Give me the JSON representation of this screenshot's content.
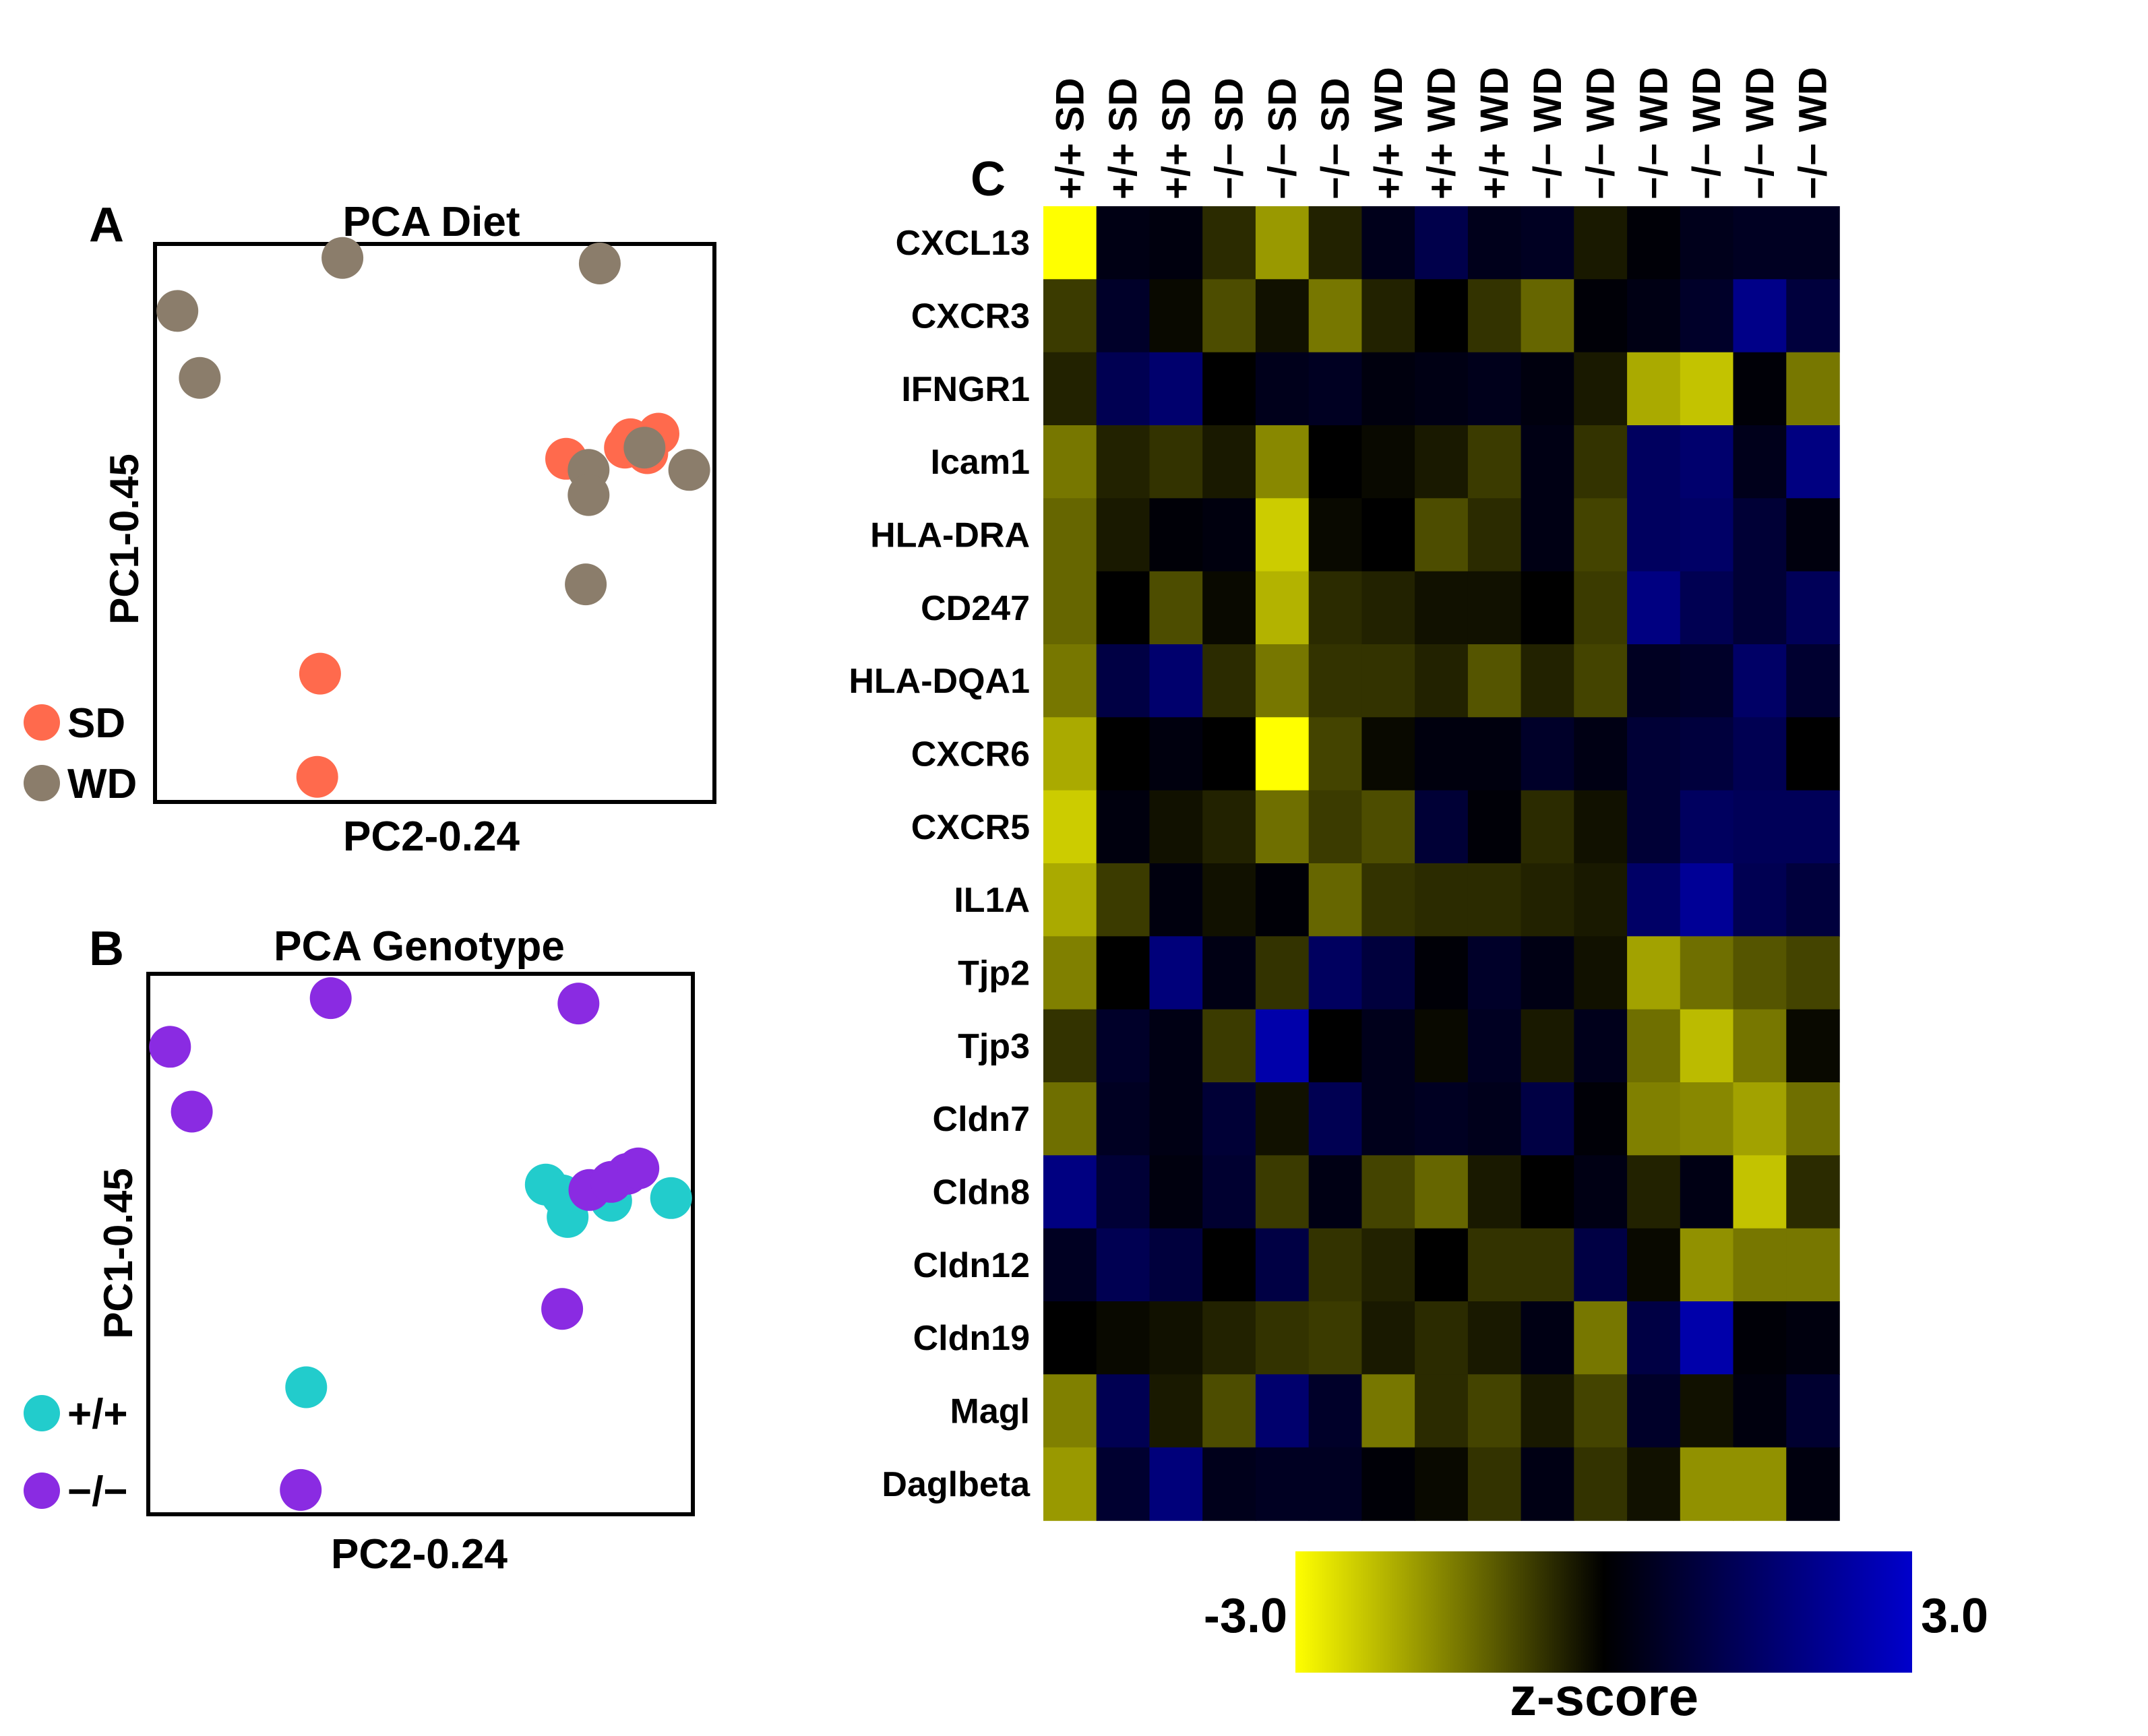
{
  "chart_data": [
    {
      "panel": "A",
      "type": "scatter",
      "title": "PCA Diet",
      "xlabel": "PC2-0.24",
      "ylabel": "PC1-0.45",
      "xlim": [
        0,
        100
      ],
      "ylim": [
        0,
        100
      ],
      "grid": false,
      "legend_position": "left",
      "series": [
        {
          "name": "SD",
          "color": "#ff6a4d",
          "points": [
            [
              29.5,
              23
            ],
            [
              29,
              4.5
            ],
            [
              73.5,
              61.5
            ],
            [
              85,
              65
            ],
            [
              90,
              66
            ],
            [
              84,
              63.5
            ],
            [
              88,
              62.5
            ]
          ]
        },
        {
          "name": "WD",
          "color": "#8b7d6b",
          "points": [
            [
              33.5,
              97.5
            ],
            [
              79.5,
              96.5
            ],
            [
              4,
              88
            ],
            [
              8,
              76
            ],
            [
              77.5,
              59.5
            ],
            [
              77.5,
              55
            ],
            [
              77,
              39
            ],
            [
              87.5,
              63.5
            ],
            [
              95.5,
              59.5
            ]
          ]
        }
      ]
    },
    {
      "panel": "B",
      "type": "scatter",
      "title": "PCA Genotype",
      "xlabel": "PC2-0.24",
      "ylabel": "PC1-0.45",
      "xlim": [
        0,
        100
      ],
      "ylim": [
        0,
        100
      ],
      "grid": false,
      "legend_position": "left",
      "series": [
        {
          "name": "+/+",
          "color": "#22cccc",
          "points": [
            [
              73,
              61
            ],
            [
              77,
              55
            ],
            [
              76,
              59
            ],
            [
              85,
              58
            ],
            [
              96,
              58.5
            ],
            [
              29,
              23.5
            ]
          ]
        },
        {
          "name": "−/−",
          "color": "#8a2be2",
          "points": [
            [
              33.5,
              95.5
            ],
            [
              79,
              94.5
            ],
            [
              4,
              86.5
            ],
            [
              8,
              74.5
            ],
            [
              81,
              60
            ],
            [
              85,
              61.5
            ],
            [
              88,
              63
            ],
            [
              90,
              64
            ],
            [
              76,
              38
            ],
            [
              28,
              4.5
            ]
          ]
        }
      ]
    },
    {
      "panel": "C",
      "type": "heatmap",
      "title": "",
      "columns": [
        "+/+ SD",
        "+/+ SD",
        "+/+ SD",
        "−/− SD",
        "−/− SD",
        "−/− SD",
        "+/+ WD",
        "+/+ WD",
        "+/+ WD",
        "−/− WD",
        "−/− WD",
        "−/− WD",
        "−/− WD",
        "−/− WD",
        "−/− WD"
      ],
      "rows": [
        "CXCL13",
        "CXCR3",
        "IFNGR1",
        "Icam1",
        "HLA-DRA",
        "CD247",
        "HLA-DQA1",
        "CXCR6",
        "CXCR5",
        "IL1A",
        "Tjp2",
        "Tjp3",
        "Cldn7",
        "Cldn8",
        "Cldn12",
        "Cldn19",
        "Magl",
        "Daglbeta"
      ],
      "values": [
        [
          -3.0,
          0.3,
          0.2,
          -0.5,
          -1.8,
          -0.4,
          0.4,
          1.1,
          0.4,
          0.5,
          -0.3,
          0.1,
          0.4,
          0.5,
          0.5
        ],
        [
          -0.7,
          0.6,
          -0.1,
          -0.9,
          -0.2,
          -1.4,
          -0.4,
          0.0,
          -0.6,
          -1.2,
          0.1,
          0.3,
          0.6,
          2.0,
          0.9
        ],
        [
          -0.4,
          1.2,
          1.6,
          0.0,
          0.4,
          0.5,
          0.2,
          0.3,
          0.4,
          0.2,
          -0.3,
          -2.0,
          -2.3,
          0.1,
          -1.4
        ],
        [
          -1.4,
          -0.4,
          -0.6,
          -0.3,
          -1.6,
          0.0,
          -0.1,
          -0.3,
          -0.7,
          0.3,
          -0.6,
          1.4,
          1.6,
          0.4,
          1.9
        ],
        [
          -1.2,
          -0.3,
          0.1,
          0.2,
          -2.4,
          -0.1,
          0.0,
          -0.9,
          -0.5,
          0.3,
          -0.8,
          1.4,
          1.5,
          0.8,
          0.2
        ],
        [
          -1.2,
          0.0,
          -0.9,
          -0.1,
          -2.1,
          -0.5,
          -0.4,
          -0.2,
          -0.2,
          0.0,
          -0.7,
          1.9,
          1.2,
          0.8,
          1.3
        ],
        [
          -1.4,
          1.0,
          1.6,
          -0.5,
          -1.4,
          -0.6,
          -0.6,
          -0.4,
          -1.0,
          -0.4,
          -0.8,
          0.5,
          0.6,
          1.5,
          0.7
        ],
        [
          -2.0,
          0.0,
          0.2,
          0.0,
          -3.0,
          -0.8,
          -0.1,
          0.2,
          0.2,
          0.6,
          0.3,
          0.8,
          0.9,
          1.2,
          0.0
        ],
        [
          -2.4,
          0.2,
          -0.2,
          -0.4,
          -1.3,
          -0.7,
          -0.9,
          0.8,
          0.1,
          -0.5,
          -0.2,
          0.8,
          1.4,
          1.3,
          1.3
        ],
        [
          -2.0,
          -0.7,
          0.2,
          -0.2,
          0.1,
          -1.2,
          -0.6,
          -0.5,
          -0.5,
          -0.4,
          -0.3,
          1.5,
          2.2,
          1.2,
          0.9
        ],
        [
          -1.5,
          0.0,
          1.8,
          0.3,
          -0.6,
          1.4,
          0.9,
          0.1,
          0.6,
          0.3,
          -0.2,
          -1.9,
          -1.3,
          -1.0,
          -0.8
        ],
        [
          -0.6,
          0.6,
          0.3,
          -0.7,
          2.5,
          0.0,
          0.4,
          -0.1,
          0.5,
          -0.3,
          0.4,
          -1.3,
          -2.2,
          -1.4,
          -0.1
        ],
        [
          -1.3,
          0.5,
          0.3,
          0.8,
          -0.2,
          1.2,
          0.4,
          0.5,
          0.4,
          1.0,
          0.1,
          -1.5,
          -1.6,
          -1.9,
          -1.3
        ],
        [
          1.9,
          0.8,
          0.2,
          0.7,
          -0.7,
          0.3,
          -0.8,
          -1.2,
          -0.3,
          0.0,
          0.3,
          -0.4,
          0.3,
          -2.3,
          -0.5
        ],
        [
          0.5,
          1.2,
          0.9,
          0.0,
          1.0,
          -0.6,
          -0.4,
          0.0,
          -0.6,
          -0.6,
          1.0,
          -0.1,
          -1.7,
          -1.4,
          -1.4
        ],
        [
          0.0,
          -0.1,
          -0.2,
          -0.4,
          -0.6,
          -0.7,
          -0.3,
          -0.5,
          -0.3,
          0.3,
          -1.4,
          1.0,
          2.5,
          0.1,
          0.2
        ],
        [
          -1.5,
          1.2,
          -0.3,
          -0.9,
          1.6,
          0.6,
          -1.4,
          -0.5,
          -0.8,
          -0.3,
          -0.8,
          0.6,
          -0.2,
          0.2,
          0.7
        ],
        [
          -1.8,
          0.7,
          1.8,
          0.4,
          0.5,
          0.5,
          0.1,
          -0.1,
          -0.6,
          0.3,
          -0.6,
          -0.2,
          -1.7,
          -1.7,
          0.2
        ]
      ],
      "colorscale": {
        "low": "#ffff00",
        "mid": "#000000",
        "high": "#0000cc",
        "vmin": -3.0,
        "vmax": 3.0
      },
      "colorbar": {
        "min_label": "-3.0",
        "max_label": "3.0",
        "title": "z-score"
      }
    }
  ],
  "panel_labels": {
    "a": "A",
    "b": "B",
    "c": "C"
  }
}
